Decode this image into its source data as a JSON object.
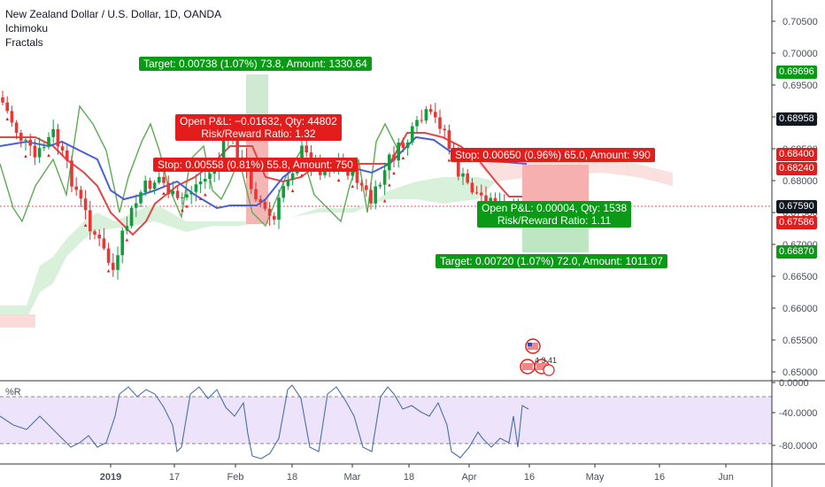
{
  "legend": {
    "title": "New Zealand Dollar / U.S. Dollar, 1D, OANDA",
    "ind1": "Ichimoku",
    "ind2": "Fractals"
  },
  "trade_labels": {
    "target1": "Target: 0.00738 (1.07%) 73.8, Amount: 1330.64",
    "pnl1a": "Open P&L: −0.01632, Qty: 44802",
    "pnl1b": "Risk/Reward Ratio: 1.32",
    "stop1": "Stop: 0.00558 (0.81%) 55.8, Amount: 750",
    "stop2": "Stop: 0.00650 (0.96%) 65.0, Amount: 990",
    "pnl2a": "Open P&L: 0.00004, Qty: 1538",
    "pnl2b": "Risk/Reward Ratio: 1.11",
    "target2": "Target: 0.00720 (1.07%) 72.0, Amount: 1011.07"
  },
  "price_axis": {
    "ticks": [
      "0.70500",
      "0.70000",
      "0.69500",
      "0.69000",
      "0.68500",
      "0.68000",
      "0.67500",
      "0.67000",
      "0.66500",
      "0.66000",
      "0.65500",
      "0.65000"
    ],
    "tags": [
      {
        "text": "0.69696",
        "color": "#0a9a16"
      },
      {
        "text": "0.68958",
        "color": "#131722"
      },
      {
        "text": "0.68400",
        "color": "#e31c1c"
      },
      {
        "text": "0.68240",
        "color": "#e31c1c"
      },
      {
        "text": "0.67590",
        "color": "#131722"
      },
      {
        "text": "0.67586",
        "color": "#e31c1c"
      },
      {
        "text": "0.66870",
        "color": "#0a9a16"
      }
    ]
  },
  "osc": {
    "name": "%R",
    "ticks": [
      "0.0000",
      "-40.0000",
      "-80.0000"
    ]
  },
  "time_axis": [
    "2019",
    "17",
    "Feb",
    "18",
    "Mar",
    "18",
    "Apr",
    "16",
    "May",
    "16",
    "Jun"
  ],
  "event_badge": "4 3 41",
  "colors": {
    "green": "#0a9a16",
    "red": "#e31c1c",
    "blue": "#4a5fd6",
    "cloud_green": "#d7efd9",
    "cloud_red": "#f9d6d6"
  }
}
